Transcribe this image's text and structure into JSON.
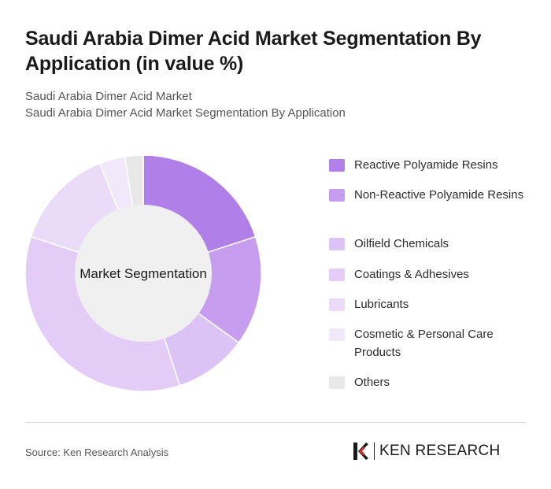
{
  "title": "Saudi Arabia Dimer Acid Market Segmentation By Application (in value %)",
  "subtitle_1": "Saudi Arabia Dimer Acid Market",
  "subtitle_2": "Saudi Arabia Dimer Acid Market Segmentation By Application",
  "source": "Source: Ken Research Analysis",
  "logo_text": "KEN RESEARCH",
  "chart_data": {
    "type": "pie",
    "center_label": "Market Segmentation",
    "categories": [
      "Reactive Polyamide Resins",
      "Non-Reactive Polyamide Resins",
      "Oilfield Chemicals",
      "Coatings & Adhesives",
      "Lubricants",
      "Cosmetic & Personal Care Products",
      "Others"
    ],
    "values": [
      20,
      15,
      10,
      35,
      14,
      3.5,
      2.5
    ],
    "colors": [
      "#b07fe8",
      "#c79df0",
      "#dcc3f6",
      "#e3cdf7",
      "#eadbf8",
      "#f1e9fa",
      "#e8e8e8"
    ],
    "legend_position": "right"
  }
}
